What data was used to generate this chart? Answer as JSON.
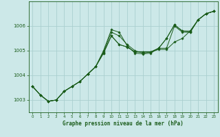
{
  "title": "Graphe pression niveau de la mer (hPa)",
  "bg_color": "#cce8e8",
  "grid_color": "#aacfcf",
  "line_color": "#1a5c1a",
  "xlim": [
    -0.5,
    23.5
  ],
  "ylim": [
    1002.5,
    1007.0
  ],
  "yticks": [
    1003,
    1004,
    1005,
    1006
  ],
  "xticks": [
    0,
    1,
    2,
    3,
    4,
    5,
    6,
    7,
    8,
    9,
    10,
    11,
    12,
    13,
    14,
    15,
    16,
    17,
    18,
    19,
    20,
    21,
    22,
    23
  ],
  "series": [
    [
      1003.55,
      1003.2,
      1002.95,
      1003.0,
      1003.35,
      1003.55,
      1003.75,
      1004.05,
      1004.35,
      1004.95,
      1005.75,
      1005.6,
      1005.25,
      1005.0,
      1004.9,
      1004.95,
      1005.1,
      1005.5,
      1006.05,
      1005.8,
      1005.75,
      1006.25,
      1006.5,
      1006.6
    ],
    [
      1003.55,
      1003.2,
      1002.95,
      1003.0,
      1003.35,
      1003.55,
      1003.75,
      1004.05,
      1004.35,
      1005.0,
      1005.85,
      1005.75,
      1005.2,
      1004.9,
      1004.87,
      1004.9,
      1005.1,
      1005.1,
      1006.0,
      1005.75,
      1005.75,
      1006.25,
      1006.5,
      1006.6
    ],
    [
      1003.55,
      1003.2,
      1002.95,
      1003.0,
      1003.35,
      1003.55,
      1003.75,
      1004.05,
      1004.35,
      1004.9,
      1005.6,
      1005.25,
      1005.15,
      1004.95,
      1004.95,
      1004.95,
      1005.1,
      1005.5,
      1006.05,
      1005.8,
      1005.8,
      1006.25,
      1006.5,
      1006.6
    ],
    [
      1003.55,
      1003.2,
      1002.95,
      1003.0,
      1003.35,
      1003.55,
      1003.75,
      1004.05,
      1004.35,
      1004.9,
      1005.6,
      1005.25,
      1005.15,
      1004.95,
      1004.95,
      1004.95,
      1005.05,
      1005.05,
      1005.35,
      1005.5,
      1005.8,
      1006.25,
      1006.5,
      1006.6
    ]
  ]
}
